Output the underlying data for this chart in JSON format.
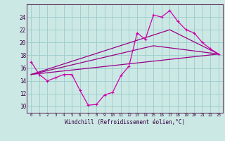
{
  "xlabel": "Windchill (Refroidissement éolien,°C)",
  "bg_color": "#cce8e4",
  "grid_color": "#99cccc",
  "line_color": "#990088",
  "line_color2": "#cc00aa",
  "xlim": [
    -0.5,
    23.5
  ],
  "ylim": [
    9.0,
    26.0
  ],
  "yticks": [
    10,
    12,
    14,
    16,
    18,
    20,
    22,
    24
  ],
  "xticks": [
    0,
    1,
    2,
    3,
    4,
    5,
    6,
    7,
    8,
    9,
    10,
    11,
    12,
    13,
    14,
    15,
    16,
    17,
    18,
    19,
    20,
    21,
    22,
    23
  ],
  "line1_x": [
    0,
    1,
    2,
    3,
    4,
    5,
    6,
    7,
    8,
    9,
    10,
    11,
    12,
    13,
    14,
    15,
    16,
    17,
    18,
    19,
    20,
    21,
    22,
    23
  ],
  "line1_y": [
    17.0,
    15.0,
    14.0,
    14.5,
    15.0,
    15.0,
    12.5,
    10.2,
    10.3,
    11.8,
    12.2,
    14.8,
    16.3,
    21.5,
    20.5,
    24.3,
    24.0,
    25.0,
    23.3,
    22.0,
    21.5,
    20.0,
    19.0,
    18.2
  ],
  "line2_x": [
    0,
    23
  ],
  "line2_y": [
    15.0,
    18.2
  ],
  "line3_x": [
    0,
    15,
    23
  ],
  "line3_y": [
    15.0,
    19.5,
    18.2
  ],
  "line4_x": [
    0,
    17,
    23
  ],
  "line4_y": [
    15.0,
    22.0,
    18.2
  ]
}
